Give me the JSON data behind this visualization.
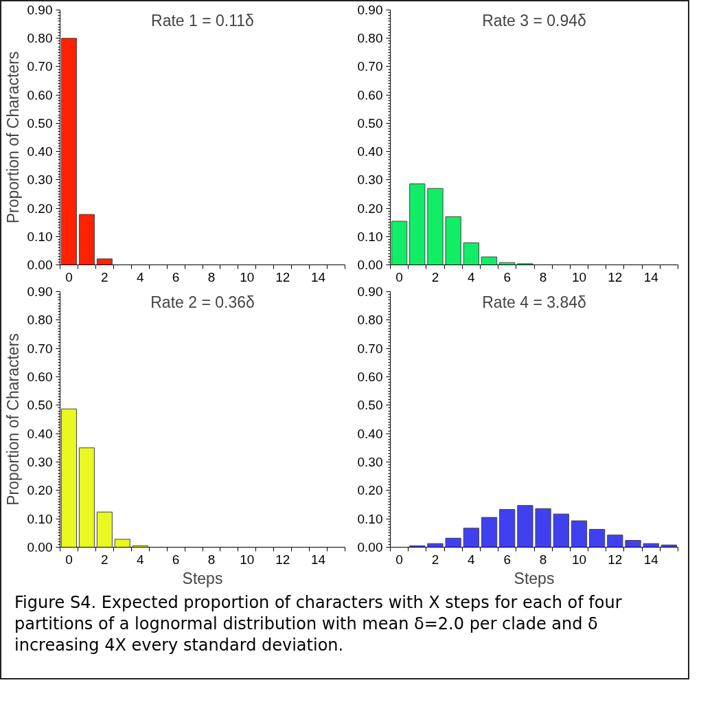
{
  "chart_data": [
    {
      "type": "bar",
      "title": "Rate 1 = 0.11δ",
      "ylabel": "Proportion of Characters",
      "categories": [
        "0",
        null,
        "2",
        null,
        "4",
        null,
        "6",
        null,
        "8",
        null,
        "10",
        null,
        "12",
        null,
        "14",
        null
      ],
      "values": [
        0.8,
        0.178,
        0.021,
        0,
        0,
        0,
        0,
        0,
        0,
        0,
        0,
        0,
        0,
        0,
        0,
        0
      ],
      "color": "#ff2200",
      "ylim": [
        0,
        0.9
      ],
      "yticks": [
        {
          "value": 0,
          "label": "0.00"
        },
        {
          "value": 0.1,
          "label": "0.10"
        },
        {
          "value": 0.2,
          "label": "0.20"
        },
        {
          "value": 0.3,
          "label": "0.30"
        },
        {
          "value": 0.4,
          "label": "0.40"
        },
        {
          "value": 0.5,
          "label": "0.50"
        },
        {
          "value": 0.6,
          "label": "0.60"
        },
        {
          "value": 0.7,
          "label": "0.70"
        },
        {
          "value": 0.8,
          "label": "0.80"
        },
        {
          "value": 0.9,
          "label": "0.90"
        }
      ],
      "grid": false
    },
    {
      "type": "bar",
      "title": "Rate 3 = 0.94δ",
      "categories": [
        "0",
        null,
        "2",
        null,
        "4",
        null,
        "6",
        null,
        "8",
        null,
        "10",
        null,
        "12",
        null,
        "14",
        null
      ],
      "values": [
        0.154,
        0.286,
        0.27,
        0.17,
        0.078,
        0.028,
        0.008,
        0.004,
        0,
        0,
        0,
        0,
        0,
        0,
        0,
        0
      ],
      "color": "#11ee66",
      "ylim": [
        0,
        0.9
      ],
      "yticks": [
        {
          "value": 0,
          "label": "0.00"
        },
        {
          "value": 0.1,
          "label": "0.10"
        },
        {
          "value": 0.2,
          "label": "0.20"
        },
        {
          "value": 0.3,
          "label": "0.30"
        },
        {
          "value": 0.4,
          "label": "0.40"
        },
        {
          "value": 0.5,
          "label": "0.50"
        },
        {
          "value": 0.6,
          "label": "0.60"
        },
        {
          "value": 0.7,
          "label": "0.70"
        },
        {
          "value": 0.8,
          "label": "0.80"
        },
        {
          "value": 0.9,
          "label": "0.90"
        }
      ],
      "grid": false
    },
    {
      "type": "bar",
      "title": "Rate 2 = 0.36δ",
      "ylabel": "Proportion of Characters",
      "xlabel": "Steps",
      "categories": [
        "0",
        null,
        "2",
        null,
        "4",
        null,
        "6",
        null,
        "8",
        null,
        "10",
        null,
        "12",
        null,
        "14",
        null
      ],
      "values": [
        0.487,
        0.35,
        0.124,
        0.028,
        0.005,
        0,
        0,
        0,
        0,
        0,
        0,
        0,
        0,
        0,
        0,
        0
      ],
      "color": "#e8f820",
      "ylim": [
        0,
        0.9
      ],
      "yticks": [
        {
          "value": 0,
          "label": "0.00"
        },
        {
          "value": 0.1,
          "label": "0.10"
        },
        {
          "value": 0.2,
          "label": "0.20"
        },
        {
          "value": 0.3,
          "label": "0.30"
        },
        {
          "value": 0.4,
          "label": "0.40"
        },
        {
          "value": 0.5,
          "label": "0.50"
        },
        {
          "value": 0.6,
          "label": "0.60"
        },
        {
          "value": 0.7,
          "label": "0.70"
        },
        {
          "value": 0.8,
          "label": "0.80"
        },
        {
          "value": 0.9,
          "label": "0.90"
        }
      ],
      "grid": false
    },
    {
      "type": "bar",
      "title": "Rate 4 = 3.84δ",
      "xlabel": "Steps",
      "categories": [
        "0",
        null,
        "2",
        null,
        "4",
        null,
        "6",
        null,
        "8",
        null,
        "10",
        null,
        "12",
        null,
        "14",
        null
      ],
      "values": [
        0,
        0.005,
        0.013,
        0.032,
        0.067,
        0.105,
        0.133,
        0.147,
        0.136,
        0.117,
        0.093,
        0.063,
        0.043,
        0.024,
        0.013,
        0.008
      ],
      "color": "#4040f0",
      "ylim": [
        0,
        0.9
      ],
      "yticks": [
        {
          "value": 0,
          "label": "0.00"
        },
        {
          "value": 0.1,
          "label": "0.10"
        },
        {
          "value": 0.2,
          "label": "0.20"
        },
        {
          "value": 0.3,
          "label": "0.30"
        },
        {
          "value": 0.4,
          "label": "0.40"
        },
        {
          "value": 0.5,
          "label": "0.50"
        },
        {
          "value": 0.6,
          "label": "0.60"
        },
        {
          "value": 0.7,
          "label": "0.70"
        },
        {
          "value": 0.8,
          "label": "0.80"
        },
        {
          "value": 0.9,
          "label": "0.90"
        }
      ],
      "grid": false,
      "annotations": [
        "Figure S4.  Expected proportion of characters with X steps for each of four partitions of a lognormal distribution with mean δ=2.0 per clade and δ increasing 4X every standard deviation."
      ]
    }
  ]
}
